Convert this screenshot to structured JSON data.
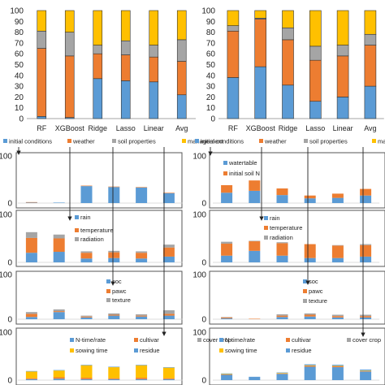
{
  "colors": {
    "initial": "#5b9bd5",
    "weather": "#ed7d31",
    "soil": "#a5a5a5",
    "management": "#ffc000",
    "frame": "#555555",
    "grid": "#d0d0d0",
    "arrow": "#222222"
  },
  "chart_data": [
    {
      "panel": "left-stacked",
      "type": "bar",
      "stacked": true,
      "categories": [
        "RF",
        "XGBoost",
        "Ridge",
        "Lasso",
        "Linear",
        "Avg"
      ],
      "yticks": [
        "0",
        "10",
        "20",
        "30",
        "40",
        "50",
        "60",
        "70",
        "80",
        "90",
        "100"
      ],
      "ylim": [
        0,
        100
      ],
      "grid": false,
      "legend_position": "bottom",
      "series": [
        {
          "name": "initial conditions",
          "values": [
            2,
            1,
            37,
            35,
            34,
            22
          ]
        },
        {
          "name": "weather",
          "values": [
            63,
            57,
            23,
            24,
            23,
            31
          ]
        },
        {
          "name": "soil properties",
          "values": [
            16,
            22,
            8,
            13,
            11,
            20
          ]
        },
        {
          "name": "management",
          "values": [
            19,
            20,
            32,
            28,
            32,
            27
          ]
        }
      ]
    },
    {
      "panel": "right-stacked",
      "type": "bar",
      "stacked": true,
      "categories": [
        "RF",
        "XGBoost",
        "Ridge",
        "Lasso",
        "Linear",
        "Avg"
      ],
      "yticks": [
        "0",
        "10",
        "20",
        "30",
        "40",
        "50",
        "60",
        "70",
        "80",
        "90",
        "100"
      ],
      "ylim": [
        0,
        100
      ],
      "grid": false,
      "legend_position": "bottom",
      "series": [
        {
          "name": "initial conditions",
          "values": [
            38,
            48,
            31,
            16,
            20,
            30
          ]
        },
        {
          "name": "weather",
          "values": [
            43,
            44,
            42,
            38,
            38,
            38
          ]
        },
        {
          "name": "soil properties",
          "values": [
            5,
            1,
            11,
            13,
            10,
            10
          ]
        },
        {
          "name": "management",
          "values": [
            14,
            7,
            16,
            33,
            32,
            22
          ]
        }
      ]
    },
    {
      "panel": "left-initial",
      "type": "bar",
      "stacked": true,
      "yticks": [
        "0",
        "100"
      ],
      "ylim": [
        0,
        100
      ],
      "series": [
        {
          "name": "watertable",
          "values": [
            1,
            1,
            36,
            34,
            33,
            21
          ]
        },
        {
          "name": "initial soil N",
          "values": [
            1,
            0,
            1,
            1,
            1,
            1
          ]
        }
      ]
    },
    {
      "panel": "right-initial",
      "type": "bar",
      "stacked": true,
      "yticks": [
        "0",
        "100"
      ],
      "ylim": [
        0,
        100
      ],
      "series": [
        {
          "name": "watertable",
          "values": [
            22,
            26,
            17,
            10,
            11,
            16
          ]
        },
        {
          "name": "initial soil N",
          "values": [
            16,
            22,
            14,
            6,
            9,
            14
          ]
        }
      ]
    },
    {
      "panel": "left-weather",
      "type": "bar",
      "stacked": true,
      "yticks": [
        "0",
        "100"
      ],
      "ylim": [
        0,
        100
      ],
      "series": [
        {
          "name": "rain",
          "values": [
            20,
            22,
            8,
            9,
            8,
            12
          ]
        },
        {
          "name": "temperature",
          "values": [
            31,
            28,
            12,
            12,
            12,
            19
          ]
        },
        {
          "name": "radiation",
          "values": [
            12,
            8,
            3,
            3,
            3,
            6
          ]
        }
      ]
    },
    {
      "panel": "right-weather",
      "type": "bar",
      "stacked": true,
      "yticks": [
        "0",
        "100"
      ],
      "ylim": [
        0,
        100
      ],
      "series": [
        {
          "name": "rain",
          "values": [
            14,
            24,
            14,
            9,
            9,
            12
          ]
        },
        {
          "name": "temperature",
          "values": [
            25,
            20,
            26,
            29,
            26,
            24
          ]
        },
        {
          "name": "radiation",
          "values": [
            4,
            1,
            2,
            0,
            1,
            2
          ]
        }
      ]
    },
    {
      "panel": "left-soil",
      "type": "bar",
      "stacked": true,
      "yticks": [
        "0",
        "100"
      ],
      "ylim": [
        0,
        100
      ],
      "series": [
        {
          "name": "soc",
          "values": [
            5,
            16,
            4,
            8,
            6,
            8
          ]
        },
        {
          "name": "pawc",
          "values": [
            7,
            2,
            2,
            2,
            2,
            4
          ]
        },
        {
          "name": "texture",
          "values": [
            4,
            4,
            2,
            3,
            3,
            8
          ]
        }
      ]
    },
    {
      "panel": "right-soil",
      "type": "bar",
      "stacked": true,
      "yticks": [
        "0",
        "100"
      ],
      "ylim": [
        0,
        100
      ],
      "series": [
        {
          "name": "soc",
          "values": [
            2,
            0,
            5,
            6,
            4,
            4
          ]
        },
        {
          "name": "pawc",
          "values": [
            2,
            1,
            3,
            4,
            3,
            3
          ]
        },
        {
          "name": "texture",
          "values": [
            1,
            0,
            3,
            3,
            3,
            3
          ]
        }
      ]
    },
    {
      "panel": "left-management",
      "type": "bar",
      "stacked": true,
      "yticks": [
        "0",
        "100"
      ],
      "ylim": [
        0,
        100
      ],
      "series": [
        {
          "name": "N-time/rate",
          "values": [
            2,
            3,
            2,
            2,
            2,
            2
          ]
        },
        {
          "name": "cultivar",
          "values": [
            2,
            3,
            3,
            2,
            3,
            2
          ]
        },
        {
          "name": "sowing time",
          "values": [
            14,
            14,
            26,
            23,
            26,
            22
          ]
        },
        {
          "name": "residue",
          "values": [
            1,
            1,
            1,
            1,
            1,
            1
          ]
        },
        {
          "name": "cover crop",
          "values": [
            0,
            0,
            0,
            0,
            0,
            0
          ]
        }
      ]
    },
    {
      "panel": "right-management",
      "type": "bar",
      "stacked": true,
      "yticks": [
        "0",
        "100"
      ],
      "ylim": [
        0,
        100
      ],
      "series": [
        {
          "name": "N-time/rate",
          "values": [
            11,
            6,
            13,
            28,
            27,
            18
          ]
        },
        {
          "name": "cultivar",
          "values": [
            1,
            0,
            1,
            2,
            2,
            1
          ]
        },
        {
          "name": "sowing time",
          "values": [
            1,
            0,
            1,
            1,
            1,
            1
          ]
        },
        {
          "name": "residue",
          "values": [
            1,
            1,
            1,
            2,
            2,
            2
          ]
        },
        {
          "name": "cover crop",
          "values": [
            0,
            0,
            0,
            0,
            0,
            0
          ]
        }
      ]
    }
  ]
}
